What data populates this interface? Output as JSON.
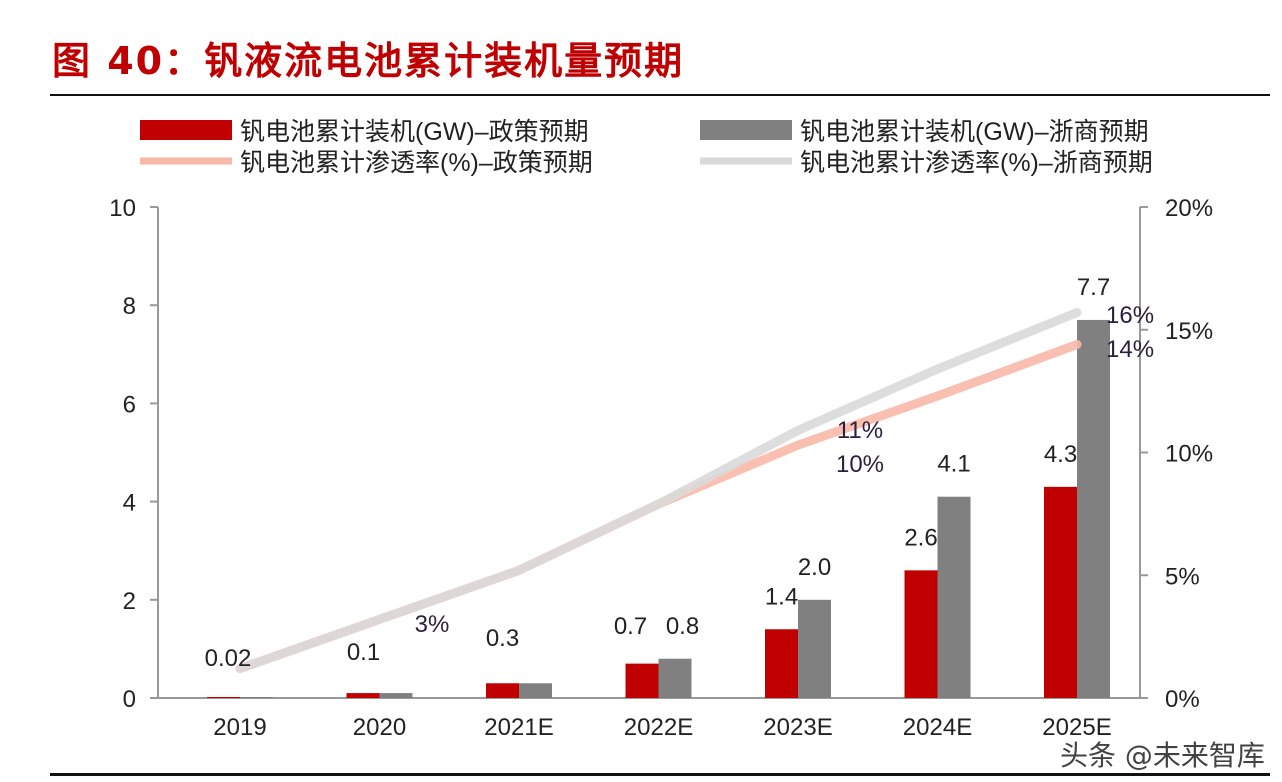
{
  "title": "图 40：钒液流电池累计装机量预期",
  "watermark": "头条 @未来智库",
  "chart_data": {
    "type": "bar+line",
    "categories": [
      "2019",
      "2020",
      "2021E",
      "2022E",
      "2023E",
      "2024E",
      "2025E"
    ],
    "ylim": [
      0,
      10
    ],
    "yticks": [
      "0",
      "2",
      "4",
      "6",
      "8",
      "10"
    ],
    "y2lim": [
      0,
      20
    ],
    "y2ticks": [
      "0%",
      "5%",
      "10%",
      "15%",
      "20%"
    ],
    "grid": false,
    "legend_position": "top",
    "bar_series": [
      {
        "name": "钒电池累计装机(GW)–政策预期",
        "color": "#c00000",
        "values": [
          0.02,
          0.1,
          0.3,
          0.7,
          1.4,
          2.6,
          4.3
        ],
        "labels": [
          "0.02",
          "0.1",
          "0.3",
          "0.7",
          "1.4",
          "2.6",
          "4.3"
        ]
      },
      {
        "name": "钒电池累计装机(GW)–浙商预期",
        "color": "#808080",
        "values": [
          0.02,
          0.1,
          0.3,
          0.8,
          2.0,
          4.1,
          7.7
        ],
        "labels": [
          "",
          "",
          "",
          "0.8",
          "2.0",
          "4.1",
          "7.7"
        ]
      }
    ],
    "line_series": [
      {
        "name": "钒电池累计渗透率(%)–政策预期",
        "color": "#f8b8a8",
        "values": [
          1.2,
          3.2,
          5.2,
          7.9,
          10.3,
          12.3,
          14.4
        ],
        "labels": [
          "",
          "",
          "",
          "",
          "10%",
          "",
          "14%"
        ]
      },
      {
        "name": "钒电池累计渗透率(%)–浙商预期",
        "color": "#d9d9d9",
        "values": [
          1.2,
          3.2,
          5.2,
          7.9,
          10.9,
          13.4,
          15.7
        ],
        "labels": [
          "",
          "3%",
          "",
          "",
          "11%",
          "",
          "16%"
        ]
      }
    ]
  }
}
